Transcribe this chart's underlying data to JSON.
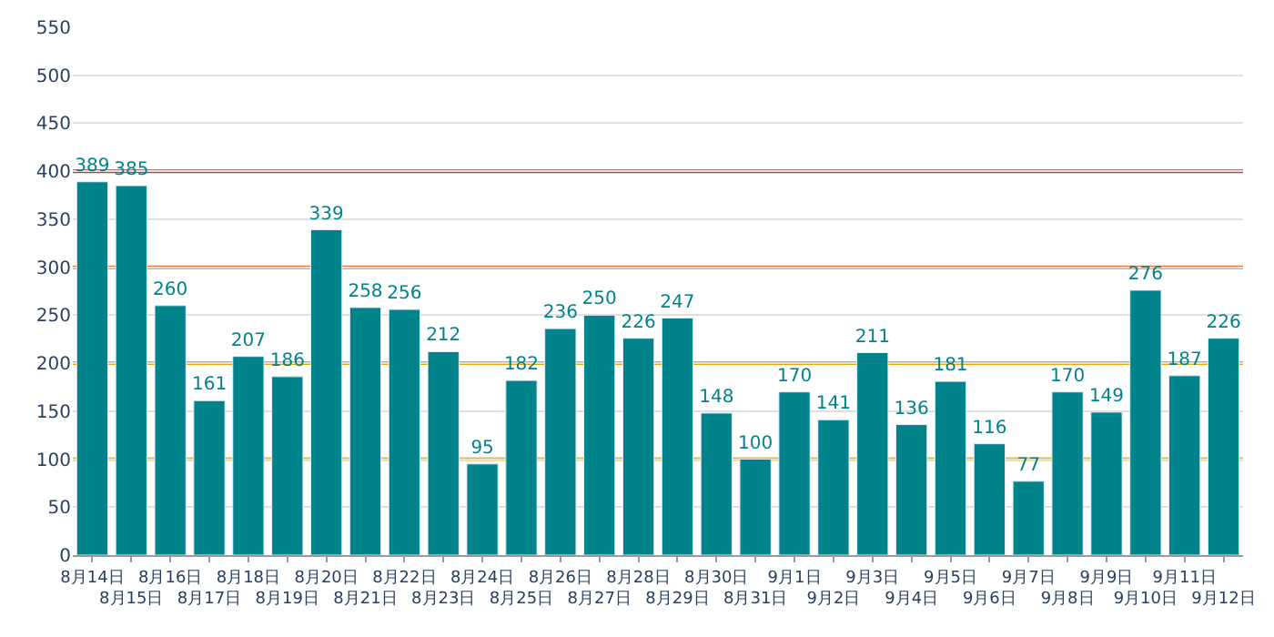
{
  "chart_data": {
    "type": "bar",
    "categories": [
      "8月14日",
      "8月15日",
      "8月16日",
      "8月17日",
      "8月18日",
      "8月19日",
      "8月20日",
      "8月21日",
      "8月22日",
      "8月23日",
      "8月24日",
      "8月25日",
      "8月26日",
      "8月27日",
      "8月28日",
      "8月29日",
      "8月30日",
      "8月31日",
      "9月1日",
      "9月2日",
      "9月3日",
      "9月4日",
      "9月5日",
      "9月6日",
      "9月7日",
      "9月8日",
      "9月9日",
      "9月10日",
      "9月11日",
      "9月12日"
    ],
    "values": [
      389,
      385,
      260,
      161,
      207,
      186,
      339,
      258,
      256,
      212,
      95,
      182,
      236,
      250,
      226,
      247,
      148,
      100,
      170,
      141,
      211,
      136,
      181,
      116,
      77,
      170,
      149,
      276,
      187,
      226
    ],
    "color": "#00838a",
    "ylim": [
      0,
      550
    ],
    "yticks": [
      0,
      50,
      100,
      150,
      200,
      250,
      300,
      350,
      400,
      450,
      500,
      550
    ],
    "grid": "y",
    "data_labels": true,
    "legend": false,
    "ref_lines": [
      {
        "axis": "y",
        "value": 100,
        "color": "#e6c229"
      },
      {
        "axis": "y",
        "value": 200,
        "color": "#f0a30a"
      },
      {
        "axis": "y",
        "value": 300,
        "color": "#e57c3c"
      },
      {
        "axis": "y",
        "value": 400,
        "color": "#9e4a52"
      }
    ]
  }
}
